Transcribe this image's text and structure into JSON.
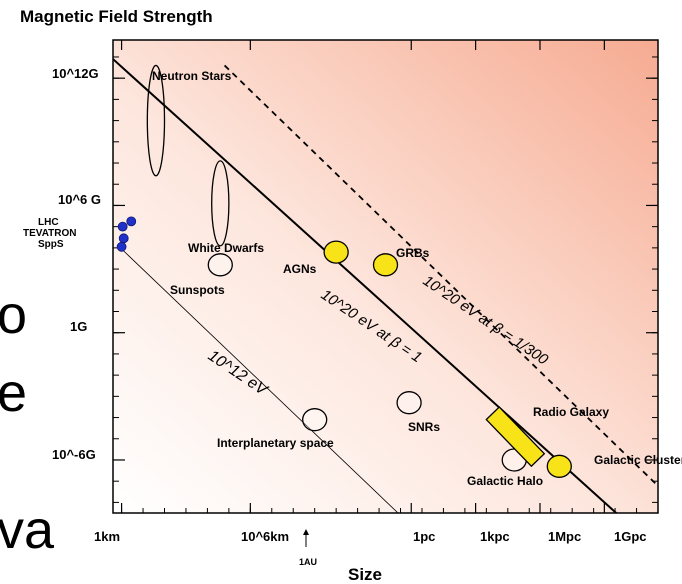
{
  "chart_data": {
    "type": "scatter",
    "title": "Magnetic Field Strength",
    "xlabel": "Size",
    "x_ticks": [
      "1km",
      "10^6km",
      "1pc",
      "1kpc",
      "1Mpc",
      "1Gpc"
    ],
    "x_tick_values_log_km": [
      0,
      6,
      13.5,
      16.5,
      19.5,
      22.5
    ],
    "x_annotation": {
      "label": "1AU",
      "log_km": 8.2
    },
    "y_ticks": [
      "10^12G",
      "10^6 G",
      "1G",
      "10^-6G"
    ],
    "y_tick_values_log_G": [
      12,
      6,
      0,
      -6
    ],
    "xlim_log_km": [
      -0.4,
      25
    ],
    "ylim_log_G": [
      -8.5,
      13.8
    ],
    "accelerators": {
      "labels": [
        "LHC",
        "TEVATRON",
        "SppS"
      ],
      "points": [
        {
          "log_km": 0.05,
          "log_G": 5.0
        },
        {
          "log_km": 0.45,
          "log_G": 5.25
        },
        {
          "log_km": 0.1,
          "log_G": 4.45
        },
        {
          "log_km": 0.0,
          "log_G": 4.05
        }
      ]
    },
    "objects": [
      {
        "name": "Neutron Stars",
        "shape": "ellipse",
        "fill": "none",
        "cx": 1.6,
        "cy": 10.0,
        "rx": 0.4,
        "ry": 2.6
      },
      {
        "name": "White Dwarfs",
        "shape": "ellipse",
        "fill": "none",
        "cx": 4.6,
        "cy": 6.1,
        "rx": 0.4,
        "ry": 2.0
      },
      {
        "name": "Sunspots",
        "shape": "circle",
        "fill": "none",
        "cx": 4.6,
        "cy": 3.2
      },
      {
        "name": "AGNs",
        "shape": "circle",
        "fill": "#f7e317",
        "cx": 10.0,
        "cy": 3.8
      },
      {
        "name": "GRBs",
        "shape": "circle",
        "fill": "#f7e317",
        "cx": 12.3,
        "cy": 3.2
      },
      {
        "name": "Interplanetary space",
        "shape": "circle",
        "fill": "none",
        "cx": 9.0,
        "cy": -4.1
      },
      {
        "name": "SNRs",
        "shape": "circle",
        "fill": "none",
        "cx": 13.4,
        "cy": -3.3
      },
      {
        "name": "Galactic Halo",
        "shape": "circle",
        "fill": "none",
        "cx": 18.3,
        "cy": -6.0
      },
      {
        "name": "Galactic Cluster",
        "shape": "circle",
        "fill": "#f7e317",
        "cx": 20.4,
        "cy": -6.3
      },
      {
        "name": "Radio Galaxy",
        "shape": "bar",
        "fill": "#f7e317",
        "x0": 17.3,
        "y0": -3.8,
        "x1": 19.4,
        "y1": -6.0
      }
    ],
    "lines": [
      {
        "label": "10^20 eV at β = 1",
        "style": "solid",
        "points": [
          [
            -0.4,
            12.9
          ],
          [
            23.6,
            -9.0
          ]
        ]
      },
      {
        "label": "10^20 eV at β = 1/300",
        "style": "dashed",
        "points": [
          [
            4.8,
            12.6
          ],
          [
            26.3,
            -8.5
          ]
        ]
      },
      {
        "label": "10^12 eV",
        "style": "thin",
        "points": [
          [
            0.05,
            3.9
          ],
          [
            13.4,
            -9.0
          ]
        ]
      }
    ],
    "background_text": [
      "o",
      "e",
      "va"
    ]
  }
}
